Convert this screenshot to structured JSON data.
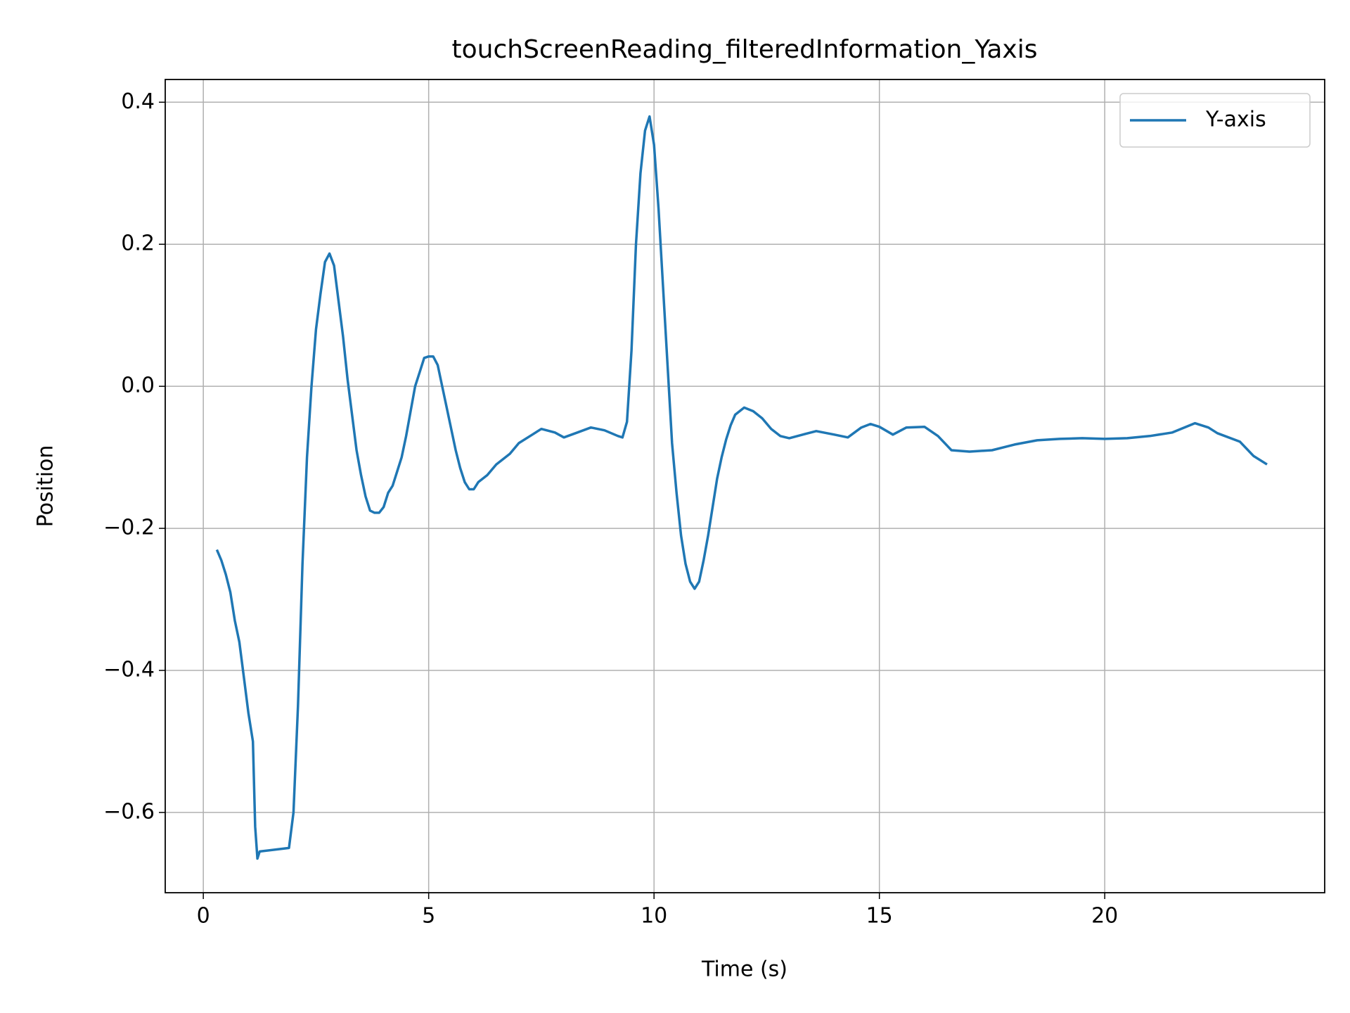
{
  "chart_data": {
    "type": "line",
    "title": "touchScreenReading_filteredInformation_Yaxis",
    "x_label": "Time (s)",
    "y_label": "Position",
    "x": [
      0.3,
      0.4,
      0.5,
      0.6,
      0.7,
      0.8,
      0.9,
      1.0,
      1.1,
      1.15,
      1.2,
      1.25,
      1.9,
      2.0,
      2.1,
      2.2,
      2.3,
      2.4,
      2.5,
      2.6,
      2.7,
      2.8,
      2.9,
      3.0,
      3.1,
      3.2,
      3.3,
      3.4,
      3.5,
      3.6,
      3.7,
      3.8,
      3.9,
      4.0,
      4.1,
      4.2,
      4.3,
      4.4,
      4.5,
      4.6,
      4.7,
      4.8,
      4.9,
      5.0,
      5.1,
      5.2,
      5.3,
      5.4,
      5.5,
      5.6,
      5.7,
      5.8,
      5.9,
      6.0,
      6.1,
      6.3,
      6.5,
      6.8,
      7.0,
      7.3,
      7.5,
      7.8,
      8.0,
      8.3,
      8.6,
      8.9,
      9.2,
      9.3,
      9.4,
      9.5,
      9.6,
      9.7,
      9.8,
      9.9,
      10.0,
      10.1,
      10.2,
      10.3,
      10.4,
      10.5,
      10.6,
      10.7,
      10.8,
      10.9,
      11.0,
      11.1,
      11.2,
      11.3,
      11.4,
      11.5,
      11.6,
      11.7,
      11.8,
      12.0,
      12.2,
      12.4,
      12.6,
      12.8,
      13.0,
      13.3,
      13.6,
      14.0,
      14.3,
      14.6,
      14.8,
      15.0,
      15.3,
      15.6,
      16.0,
      16.3,
      16.6,
      17.0,
      17.5,
      18.0,
      18.5,
      19.0,
      19.5,
      20.0,
      20.5,
      21.0,
      21.5,
      22.0,
      22.3,
      22.5,
      23.0,
      23.3,
      23.6
    ],
    "series": [
      {
        "name": "Y-axis",
        "color": "#1f77b4",
        "values": [
          -0.23,
          -0.245,
          -0.265,
          -0.29,
          -0.33,
          -0.36,
          -0.41,
          -0.46,
          -0.5,
          -0.62,
          -0.665,
          -0.655,
          -0.65,
          -0.6,
          -0.45,
          -0.25,
          -0.1,
          0.0,
          0.08,
          0.13,
          0.175,
          0.187,
          0.17,
          0.12,
          0.07,
          0.01,
          -0.04,
          -0.09,
          -0.125,
          -0.155,
          -0.175,
          -0.178,
          -0.178,
          -0.17,
          -0.15,
          -0.14,
          -0.12,
          -0.1,
          -0.07,
          -0.035,
          0.0,
          0.02,
          0.04,
          0.042,
          0.042,
          0.03,
          0.0,
          -0.03,
          -0.06,
          -0.09,
          -0.115,
          -0.135,
          -0.145,
          -0.145,
          -0.135,
          -0.125,
          -0.11,
          -0.095,
          -0.08,
          -0.068,
          -0.06,
          -0.065,
          -0.072,
          -0.065,
          -0.058,
          -0.062,
          -0.07,
          -0.072,
          -0.05,
          0.05,
          0.2,
          0.3,
          0.36,
          0.38,
          0.34,
          0.25,
          0.14,
          0.03,
          -0.08,
          -0.15,
          -0.21,
          -0.25,
          -0.275,
          -0.285,
          -0.275,
          -0.245,
          -0.21,
          -0.17,
          -0.13,
          -0.1,
          -0.075,
          -0.055,
          -0.04,
          -0.03,
          -0.035,
          -0.045,
          -0.06,
          -0.07,
          -0.073,
          -0.068,
          -0.063,
          -0.068,
          -0.072,
          -0.058,
          -0.053,
          -0.057,
          -0.068,
          -0.058,
          -0.057,
          -0.07,
          -0.09,
          -0.092,
          -0.09,
          -0.082,
          -0.076,
          -0.074,
          -0.073,
          -0.074,
          -0.073,
          -0.07,
          -0.065,
          -0.052,
          -0.058,
          -0.066,
          -0.078,
          -0.098,
          -0.11
        ]
      }
    ],
    "xlim": [
      -0.845,
      24.88
    ],
    "ylim": [
      -0.713,
      0.432
    ],
    "xticks": [
      0,
      5,
      10,
      15,
      20
    ],
    "yticks": [
      {
        "value": -0.6,
        "label": "−0.6"
      },
      {
        "value": -0.4,
        "label": "−0.4"
      },
      {
        "value": -0.2,
        "label": "−0.2"
      },
      {
        "value": 0,
        "label": "0.0"
      },
      0.2,
      0.4
    ],
    "grid": true,
    "legend": "upper-right"
  }
}
